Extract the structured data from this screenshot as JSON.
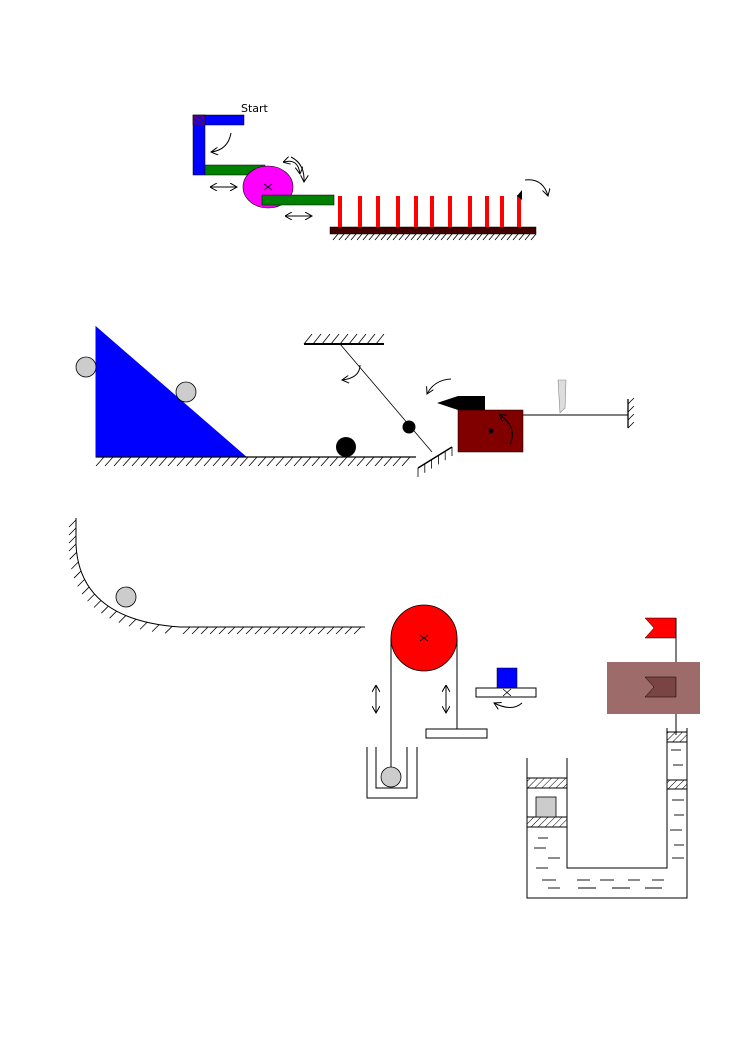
{
  "labels": {
    "start": "Start"
  },
  "colors": {
    "blue": "#0000ff",
    "green": "#008000",
    "magenta": "#ff00ff",
    "red": "#ff0000",
    "dark_red": "#800000",
    "ball_gray": "#cccccc",
    "water_brown": "#9e6b6b",
    "black": "#000000"
  },
  "domino_count": 11
}
